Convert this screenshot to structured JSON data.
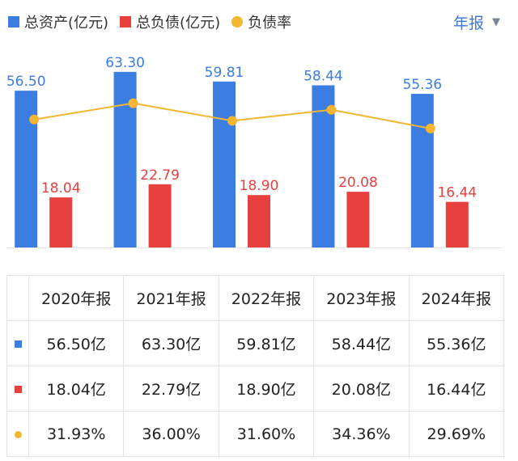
{
  "legend": {
    "assets": "总资产(亿元)",
    "liabilities": "总负债(亿元)",
    "ratio": "负债率"
  },
  "period_selector": {
    "label": "年报",
    "caret": "▼"
  },
  "colors": {
    "assets": "#3b7de0",
    "liabilities": "#e8403f",
    "ratio": "#f2b632",
    "grid": "#e6e6e6"
  },
  "chart_data": {
    "type": "bar",
    "categories": [
      "2020年报",
      "2021年报",
      "2022年报",
      "2023年报",
      "2024年报"
    ],
    "series": [
      {
        "name": "总资产(亿元)",
        "type": "bar",
        "values": [
          56.5,
          63.3,
          59.81,
          58.44,
          55.36
        ],
        "labels": [
          "56.50",
          "63.30",
          "59.81",
          "58.44",
          "55.36"
        ]
      },
      {
        "name": "总负债(亿元)",
        "type": "bar",
        "values": [
          18.04,
          22.79,
          18.9,
          20.08,
          16.44
        ],
        "labels": [
          "18.04",
          "22.79",
          "18.90",
          "20.08",
          "16.44"
        ]
      },
      {
        "name": "负债率",
        "type": "line",
        "values": [
          31.93,
          36.0,
          31.6,
          34.36,
          29.69
        ]
      }
    ],
    "ylim": [
      0,
      65
    ],
    "ratio_ylim": [
      0,
      45
    ],
    "legend_position": "top-left"
  },
  "table": {
    "headers": [
      "2020年报",
      "2021年报",
      "2022年报",
      "2023年报",
      "2024年报"
    ],
    "rows": [
      {
        "key": "assets",
        "cells": [
          "56.50亿",
          "63.30亿",
          "59.81亿",
          "58.44亿",
          "55.36亿"
        ]
      },
      {
        "key": "liabilities",
        "cells": [
          "18.04亿",
          "22.79亿",
          "18.90亿",
          "20.08亿",
          "16.44亿"
        ]
      },
      {
        "key": "ratio",
        "cells": [
          "31.93%",
          "36.00%",
          "31.60%",
          "34.36%",
          "29.69%"
        ]
      }
    ]
  }
}
